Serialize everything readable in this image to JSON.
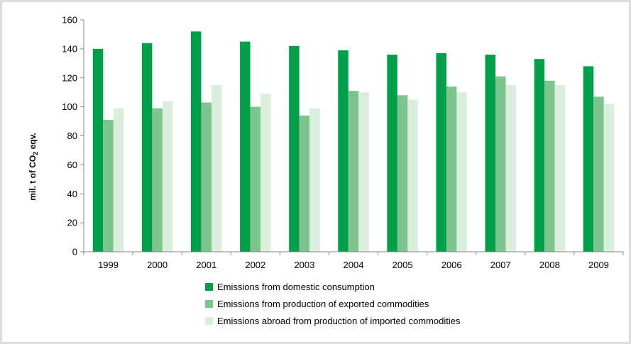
{
  "chart_data": {
    "type": "bar",
    "title": "",
    "xlabel": "",
    "ylabel": "mil. t of CO₂ eqv.",
    "ylim": [
      0,
      160
    ],
    "yticks": [
      0,
      20,
      40,
      60,
      80,
      100,
      120,
      140,
      160
    ],
    "grid": false,
    "legend_position": "bottom",
    "categories": [
      "1999",
      "2000",
      "2001",
      "2002",
      "2003",
      "2004",
      "2005",
      "2006",
      "2007",
      "2008",
      "2009"
    ],
    "series": [
      {
        "name": "Emissions from domestic consumption",
        "color": "#00a04a",
        "values": [
          140,
          144,
          152,
          145,
          142,
          139,
          136,
          137,
          136,
          133,
          128
        ]
      },
      {
        "name": "Emissions from production of exported commodities",
        "color": "#7ec48e",
        "values": [
          91,
          99,
          103,
          100,
          94,
          111,
          108,
          114,
          121,
          118,
          107
        ]
      },
      {
        "name": "Emissions abroad from production of imported commodities",
        "color": "#d9eedb",
        "values": [
          99,
          104,
          115,
          109,
          99,
          110,
          105,
          110,
          115,
          115,
          102
        ]
      }
    ]
  }
}
